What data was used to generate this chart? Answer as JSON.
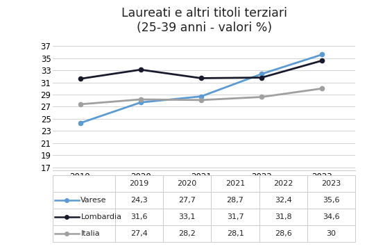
{
  "title": "Laureati e altri titoli terziari\n(25-39 anni - valori %)",
  "years": [
    2019,
    2020,
    2021,
    2022,
    2023
  ],
  "series": [
    {
      "label": "Varese",
      "values": [
        24.3,
        27.7,
        28.7,
        32.4,
        35.6
      ],
      "color": "#5B9BD5",
      "marker": "o",
      "linewidth": 2.0
    },
    {
      "label": "Lombardia",
      "values": [
        31.6,
        33.1,
        31.7,
        31.8,
        34.6
      ],
      "color": "#1a1a2e",
      "marker": "o",
      "linewidth": 2.0
    },
    {
      "label": "Italia",
      "values": [
        27.4,
        28.2,
        28.1,
        28.6,
        30.0
      ],
      "color": "#A0A0A0",
      "marker": "o",
      "linewidth": 2.0
    }
  ],
  "yticks": [
    17,
    19,
    21,
    23,
    25,
    27,
    29,
    31,
    33,
    35,
    37
  ],
  "ylim": [
    16.5,
    38.5
  ],
  "xlim": [
    2018.55,
    2023.55
  ],
  "background_color": "#FFFFFF",
  "grid_color": "#D3D3D3",
  "table_data_fmt": [
    [
      "24,3",
      "27,7",
      "28,7",
      "32,4",
      "35,6"
    ],
    [
      "31,6",
      "33,1",
      "31,7",
      "31,8",
      "34,6"
    ],
    [
      "27,4",
      "28,2",
      "28,1",
      "28,6",
      "30"
    ]
  ],
  "table_colors": [
    "#5B9BD5",
    "#1a1a2e",
    "#A0A0A0"
  ],
  "table_labels": [
    "Varese",
    "Lombardia",
    "Italia"
  ],
  "title_fontsize": 12.5,
  "tick_fontsize": 8.5,
  "table_fontsize": 8.0
}
